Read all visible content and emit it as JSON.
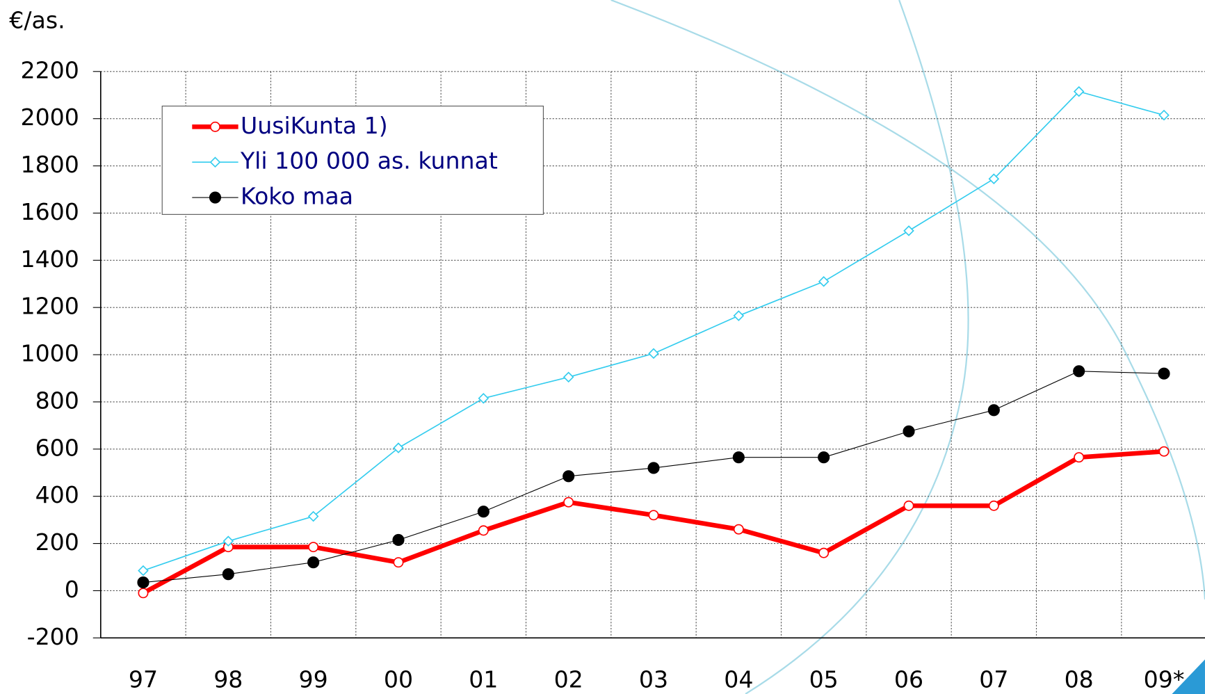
{
  "chart_data": {
    "type": "line",
    "y_label": "€/as.",
    "categories": [
      "97",
      "98",
      "99",
      "00",
      "01",
      "02",
      "03",
      "04",
      "05",
      "06",
      "07",
      "08",
      "09*"
    ],
    "series": [
      {
        "name": "UusiKunta 1)",
        "color": "#ff0000",
        "values": [
          -10,
          185,
          185,
          120,
          255,
          375,
          320,
          260,
          160,
          360,
          360,
          565,
          590
        ]
      },
      {
        "name": "Yli 100 000 as. kunnat",
        "color": "#33ccee",
        "values": [
          85,
          210,
          315,
          605,
          815,
          905,
          1005,
          1165,
          1310,
          1525,
          1745,
          2115,
          2015
        ]
      },
      {
        "name": "Koko maa",
        "color": "#000000",
        "values": [
          35,
          70,
          120,
          215,
          335,
          485,
          520,
          565,
          565,
          675,
          765,
          930,
          920
        ]
      }
    ],
    "ylim": [
      -200,
      2200
    ],
    "yticks": [
      -200,
      0,
      200,
      400,
      600,
      800,
      1000,
      1200,
      1400,
      1600,
      1800,
      2000,
      2200
    ],
    "grid": true
  }
}
